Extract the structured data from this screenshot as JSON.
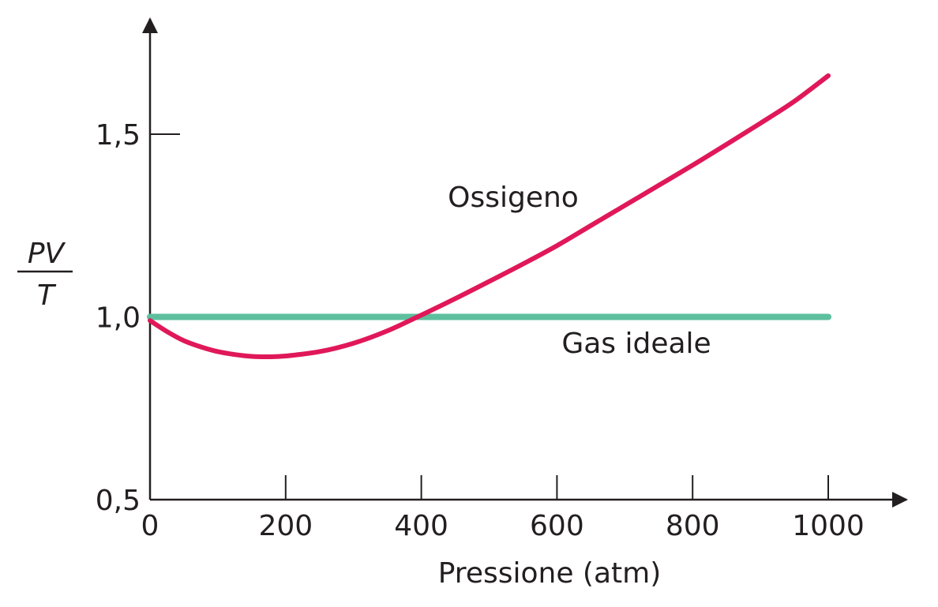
{
  "chart_data": {
    "type": "line",
    "title": "",
    "xlabel": "Pressione (atm)",
    "ylabel": {
      "numerator": "PV",
      "denominator": "T"
    },
    "xlim": [
      0,
      1000
    ],
    "ylim": [
      0.5,
      1.5
    ],
    "x_ticks": [
      "0",
      "200",
      "400",
      "600",
      "800",
      "1000"
    ],
    "y_ticks": [
      "0,5",
      "1,0",
      "1,5"
    ],
    "grid": false,
    "series": [
      {
        "name": "Ossigeno",
        "color": "#e0185a",
        "x": [
          0,
          25,
          50,
          75,
          100,
          125,
          150,
          175,
          200,
          250,
          300,
          350,
          400,
          450,
          500,
          550,
          600,
          650,
          700,
          750,
          800,
          850,
          900,
          950,
          1000
        ],
        "y": [
          0.99,
          0.96,
          0.935,
          0.918,
          0.905,
          0.897,
          0.892,
          0.891,
          0.893,
          0.905,
          0.928,
          0.962,
          1.005,
          1.05,
          1.097,
          1.145,
          1.195,
          1.25,
          1.305,
          1.36,
          1.415,
          1.472,
          1.53,
          1.59,
          1.66
        ]
      },
      {
        "name": "Gas ideale",
        "color": "#5dbf9e",
        "x": [
          0,
          1000
        ],
        "y": [
          1.0,
          1.0
        ]
      }
    ]
  }
}
